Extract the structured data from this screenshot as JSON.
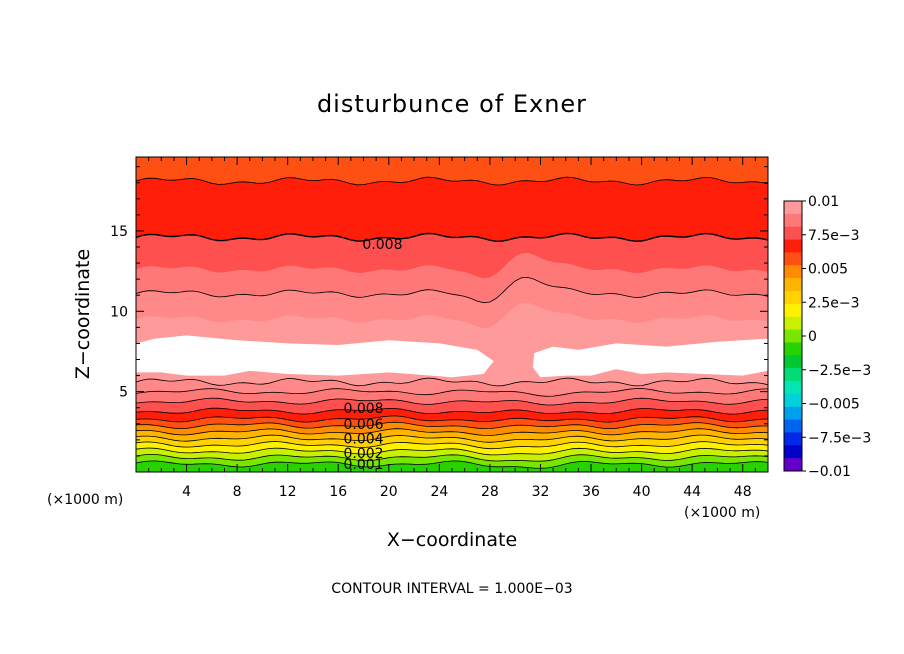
{
  "chart_data": {
    "type": "contour",
    "title": "disturbunce of Exner",
    "xlabel": "X−coordinate",
    "ylabel": "Z−coordinate",
    "x_unit": "(×1000 m)",
    "y_unit": "(×1000 m)",
    "footer": "CONTOUR INTERVAL = 1.000E−03",
    "xlim": [
      0,
      50
    ],
    "ylim": [
      0,
      19.6
    ],
    "x_ticks": [
      "4",
      "8",
      "12",
      "16",
      "20",
      "24",
      "28",
      "32",
      "36",
      "40",
      "44",
      "48"
    ],
    "y_ticks": [
      "5",
      "10",
      "15"
    ],
    "contour_interval": 0.001,
    "colorbar": {
      "min": -0.01,
      "max": 0.01,
      "labels": [
        "0.01",
        "7.5e−3",
        "0.005",
        "2.5e−3",
        "0",
        "−2.5e−3",
        "−0.005",
        "−7.5e−3",
        "−0.01"
      ],
      "colors": [
        "#ff9a9a",
        "#ff7878",
        "#ff5050",
        "#ff1e0a",
        "#ff5014",
        "#ff8c00",
        "#ffb400",
        "#ffd200",
        "#fff000",
        "#c8f000",
        "#78e600",
        "#28d200",
        "#00c832",
        "#00dc78",
        "#00e6b4",
        "#00d2dc",
        "#00a0f0",
        "#0064f0",
        "#0028e6",
        "#0000c8",
        "#6400c8"
      ]
    },
    "contour_labels": [
      {
        "text": "0.008",
        "x": 19.5,
        "y": 14.0
      },
      {
        "text": "0.008",
        "x": 18.0,
        "y": 3.8
      },
      {
        "text": "0.006",
        "x": 18.0,
        "y": 2.8
      },
      {
        "text": "0.004",
        "x": 18.0,
        "y": 1.9
      },
      {
        "text": "0.002",
        "x": 18.0,
        "y": 1.0
      },
      {
        "text": "0.001",
        "x": 18.0,
        "y": 0.3
      }
    ],
    "bands": [
      {
        "lo": 18.1,
        "hi": 19.6,
        "color": "#ff5014"
      },
      {
        "lo": 14.6,
        "hi": 18.1,
        "color": "#ff1e0a"
      },
      {
        "lo": 12.6,
        "hi": 14.6,
        "color": "#ff5050"
      },
      {
        "lo": 11.1,
        "hi": 12.6,
        "color": "#ff7878"
      },
      {
        "lo": 9.5,
        "hi": 11.1,
        "color": "#ff8888"
      },
      {
        "lo": 5.6,
        "hi": 9.5,
        "color": "#ff9a9a"
      },
      {
        "lo": 5.0,
        "hi": 5.6,
        "color": "#ff8888"
      },
      {
        "lo": 4.4,
        "hi": 5.0,
        "color": "#ff7878"
      },
      {
        "lo": 3.8,
        "hi": 4.4,
        "color": "#ff5050"
      },
      {
        "lo": 3.3,
        "hi": 3.8,
        "color": "#ff1e0a"
      },
      {
        "lo": 2.9,
        "hi": 3.3,
        "color": "#ff5014"
      },
      {
        "lo": 2.5,
        "hi": 2.9,
        "color": "#ff8c00"
      },
      {
        "lo": 2.1,
        "hi": 2.5,
        "color": "#ffb400"
      },
      {
        "lo": 1.7,
        "hi": 2.1,
        "color": "#ffd200"
      },
      {
        "lo": 1.3,
        "hi": 1.7,
        "color": "#fff000"
      },
      {
        "lo": 0.9,
        "hi": 1.3,
        "color": "#c8f000"
      },
      {
        "lo": 0.5,
        "hi": 0.9,
        "color": "#78e600"
      },
      {
        "lo": 0.0,
        "hi": 0.5,
        "color": "#28d200"
      }
    ],
    "contour_lines": [
      18.1,
      14.6,
      11.1,
      5.6,
      5.0,
      4.4,
      3.8,
      3.3,
      2.9,
      2.5,
      2.1,
      1.7,
      1.3,
      0.9,
      0.5
    ],
    "white_regions": [
      {
        "name": "left-white-region",
        "points": [
          [
            0,
            8.0
          ],
          [
            1.5,
            8.3
          ],
          [
            4,
            8.5
          ],
          [
            8,
            8.2
          ],
          [
            12,
            8.0
          ],
          [
            16,
            7.9
          ],
          [
            20,
            8.2
          ],
          [
            24,
            8.0
          ],
          [
            27,
            7.6
          ],
          [
            28.3,
            6.9
          ],
          [
            27.5,
            6.1
          ],
          [
            25,
            5.9
          ],
          [
            20,
            6.2
          ],
          [
            16,
            6.0
          ],
          [
            12,
            6.1
          ],
          [
            9,
            6.3
          ],
          [
            7,
            6.0
          ],
          [
            4,
            6.0
          ],
          [
            2,
            6.2
          ],
          [
            0,
            6.2
          ]
        ]
      },
      {
        "name": "right-white-region",
        "points": [
          [
            31.5,
            7.4
          ],
          [
            33,
            7.8
          ],
          [
            35,
            7.6
          ],
          [
            38,
            8.0
          ],
          [
            42,
            7.8
          ],
          [
            46,
            8.1
          ],
          [
            50,
            8.3
          ],
          [
            50,
            6.3
          ],
          [
            48,
            6.0
          ],
          [
            45,
            6.1
          ],
          [
            42,
            6.2
          ],
          [
            40,
            6.1
          ],
          [
            38,
            6.4
          ],
          [
            36,
            6.0
          ],
          [
            34,
            6.0
          ],
          [
            32,
            5.9
          ],
          [
            31.4,
            6.5
          ]
        ]
      }
    ],
    "bulge": {
      "x": 30.8,
      "width": 2.2,
      "amp": 2.2
    }
  }
}
